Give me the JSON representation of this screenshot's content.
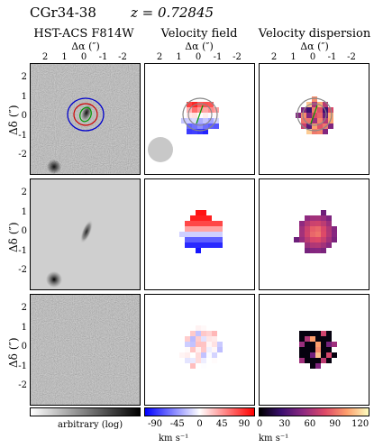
{
  "figure": {
    "object_name": "CGr34-38",
    "redshift_label": "z = 0.72845"
  },
  "columns": [
    {
      "title": "HST-ACS F814W",
      "xlabel": "Δα (″)"
    },
    {
      "title": "Velocity field",
      "xlabel": "Δα (″)"
    },
    {
      "title": "Velocity dispersion",
      "xlabel": "Δα (″)"
    }
  ],
  "x_ticks": [
    "2",
    "1",
    "0",
    "-1",
    "-2"
  ],
  "y_ticks": [
    "2",
    "1",
    "0",
    "-1",
    "-2"
  ],
  "y_label": "Δδ (″)",
  "colorbars": [
    {
      "name": "hst-colorbar",
      "label": "arbitrary (log)",
      "ticks": []
    },
    {
      "name": "velocity-colorbar",
      "ticks": [
        "-90",
        "-45",
        "0",
        "45",
        "90"
      ],
      "unit": "km s⁻¹",
      "range": [
        -110,
        110
      ]
    },
    {
      "name": "dispersion-colorbar",
      "ticks": [
        "0",
        "30",
        "60",
        "90",
        "120"
      ],
      "unit": "km s⁻¹",
      "range": [
        0,
        130
      ]
    }
  ],
  "colors": {
    "velocity_neg": "#0000ff",
    "velocity_zero": "#ffffff",
    "velocity_pos": "#ff0000",
    "contour_outer": "#0000cc",
    "contour_mid": "#cc0000",
    "contour_inner": "#009900",
    "psf": "#c8c8c8"
  }
}
